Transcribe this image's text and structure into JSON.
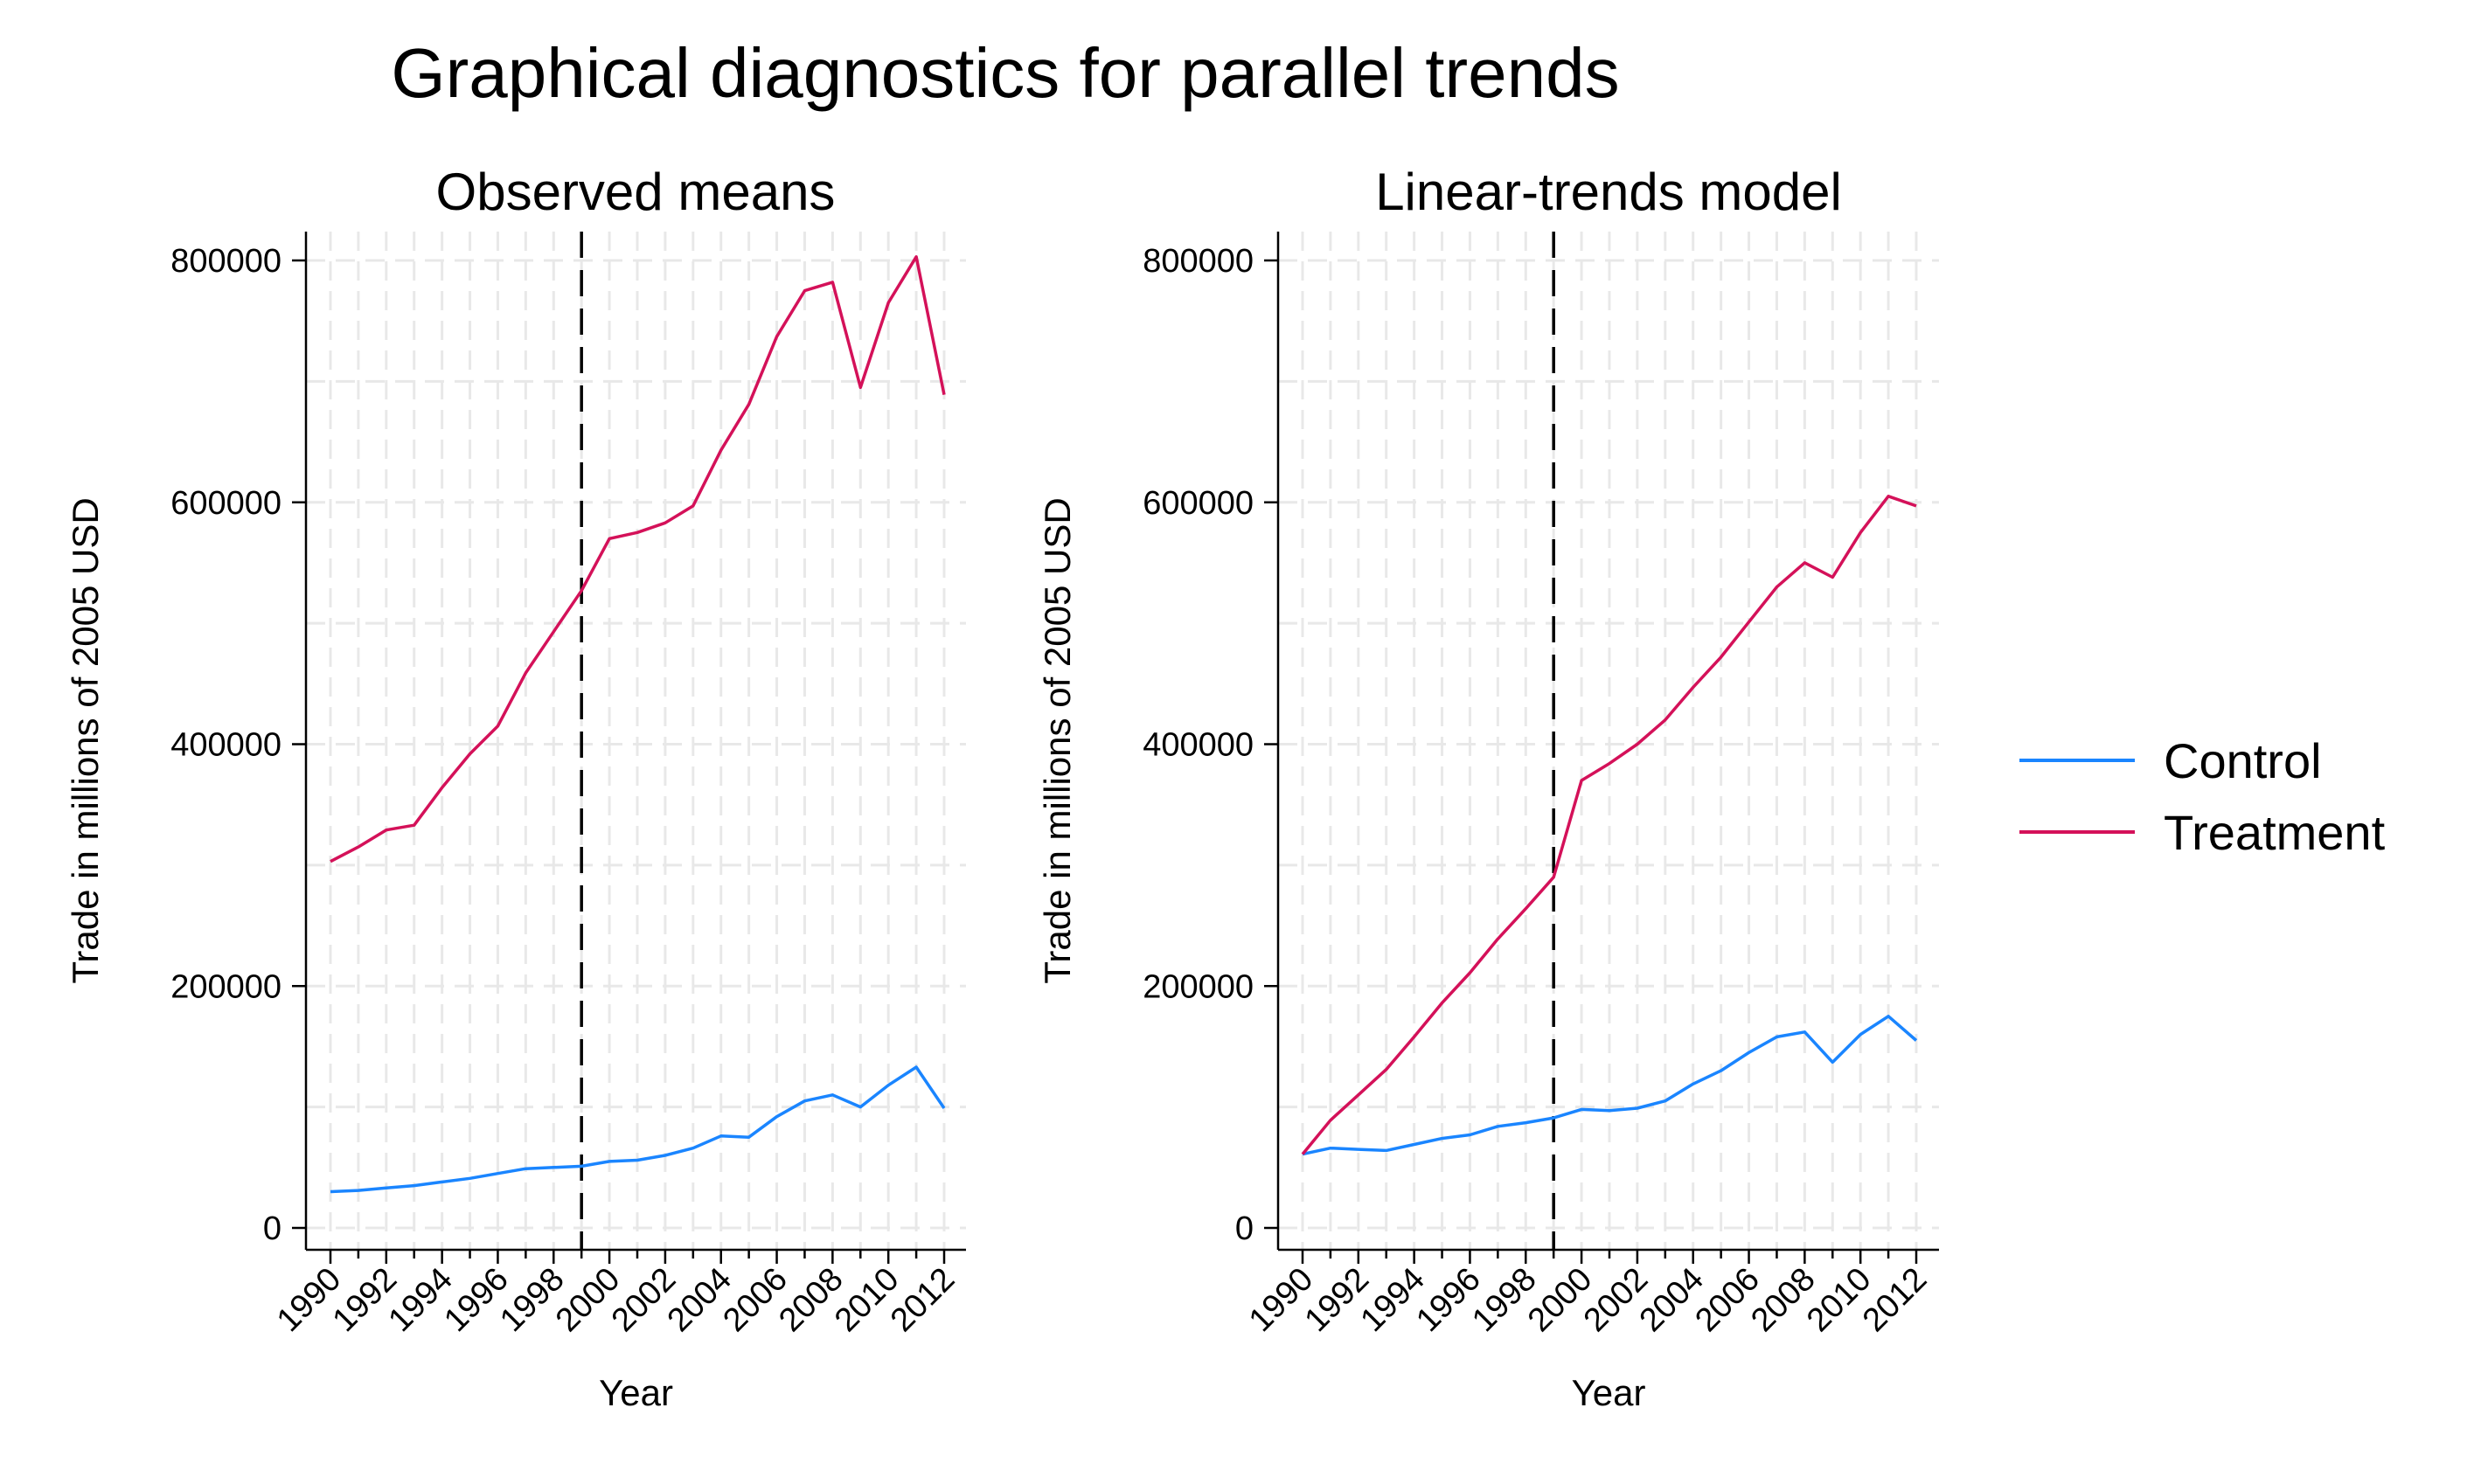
{
  "title": "Graphical diagnostics for parallel trends",
  "colors": {
    "control": "#1a85ff",
    "treatment": "#d41159"
  },
  "legend": {
    "position": "right",
    "entries": [
      "Control",
      "Treatment"
    ]
  },
  "chart_data": [
    {
      "type": "line",
      "title": "Observed means",
      "xlabel": "Year",
      "ylabel": "Trade in millions of 2005 USD",
      "xlim": [
        1990,
        2012
      ],
      "ylim": [
        0,
        800000
      ],
      "x_ticks": [
        1990,
        1992,
        1994,
        1996,
        1998,
        2000,
        2002,
        2004,
        2006,
        2008,
        2010,
        2012
      ],
      "y_ticks": [
        0,
        200000,
        400000,
        600000,
        800000
      ],
      "vline": 1999,
      "grid": true,
      "x": [
        1990,
        1991,
        1992,
        1993,
        1994,
        1995,
        1996,
        1997,
        1998,
        1999,
        2000,
        2001,
        2002,
        2003,
        2004,
        2005,
        2006,
        2007,
        2008,
        2009,
        2010,
        2011,
        2012
      ],
      "series": [
        {
          "name": "Control",
          "values": [
            30000,
            31000,
            33000,
            35000,
            38000,
            41000,
            45000,
            49000,
            50000,
            51000,
            55000,
            56000,
            60000,
            66000,
            76000,
            75000,
            92000,
            105000,
            110000,
            100000,
            118000,
            133000,
            99000
          ]
        },
        {
          "name": "Treatment",
          "values": [
            303000,
            315000,
            329000,
            333000,
            364000,
            392000,
            415000,
            459000,
            493000,
            527000,
            570000,
            575000,
            583000,
            597000,
            643000,
            681000,
            737000,
            775000,
            782000,
            695000,
            765000,
            803000,
            689000
          ]
        }
      ]
    },
    {
      "type": "line",
      "title": "Linear-trends model",
      "xlabel": "Year",
      "ylabel": "Trade in millions of 2005 USD",
      "xlim": [
        1990,
        2012
      ],
      "ylim": [
        0,
        800000
      ],
      "x_ticks": [
        1990,
        1992,
        1994,
        1996,
        1998,
        2000,
        2002,
        2004,
        2006,
        2008,
        2010,
        2012
      ],
      "y_ticks": [
        0,
        200000,
        400000,
        600000,
        800000
      ],
      "vline": 1999,
      "grid": true,
      "x": [
        1990,
        1991,
        1992,
        1993,
        1994,
        1995,
        1996,
        1997,
        1998,
        1999,
        2000,
        2001,
        2002,
        2003,
        2004,
        2005,
        2006,
        2007,
        2008,
        2009,
        2010,
        2011,
        2012
      ],
      "series": [
        {
          "name": "Control",
          "values": [
            61000,
            66000,
            65000,
            64000,
            69000,
            74000,
            77000,
            84000,
            87000,
            91000,
            98000,
            97000,
            99000,
            105000,
            119000,
            130000,
            145000,
            158000,
            162000,
            137000,
            160000,
            175000,
            155000
          ]
        },
        {
          "name": "Treatment",
          "values": [
            61000,
            89000,
            110000,
            131000,
            158000,
            186000,
            211000,
            239000,
            264000,
            290000,
            370000,
            384000,
            400000,
            420000,
            447000,
            472000,
            501000,
            530000,
            550000,
            538000,
            575000,
            605000,
            597000
          ]
        }
      ]
    }
  ]
}
